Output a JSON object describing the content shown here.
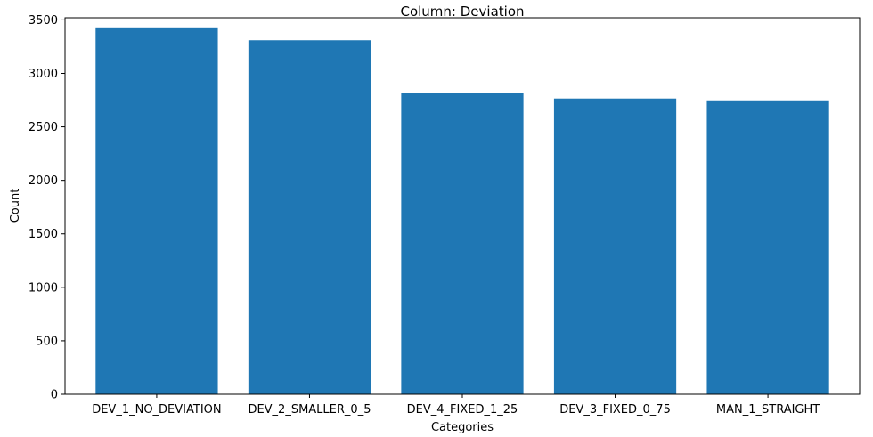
{
  "chart_data": {
    "type": "bar",
    "title": "Column: Deviation",
    "xlabel": "Categories",
    "ylabel": "Count",
    "categories": [
      "DEV_1_NO_DEVIATION",
      "DEV_2_SMALLER_0_5",
      "DEV_4_FIXED_1_25",
      "DEV_3_FIXED_0_75",
      "MAN_1_STRAIGHT"
    ],
    "values": [
      3430,
      3310,
      2820,
      2765,
      2748
    ],
    "ylim": [
      0,
      3520
    ],
    "yticks": [
      0,
      500,
      1000,
      1500,
      2000,
      2500,
      3000,
      3500
    ],
    "bar_color": "#1f77b4",
    "grid": false,
    "legend": false
  }
}
